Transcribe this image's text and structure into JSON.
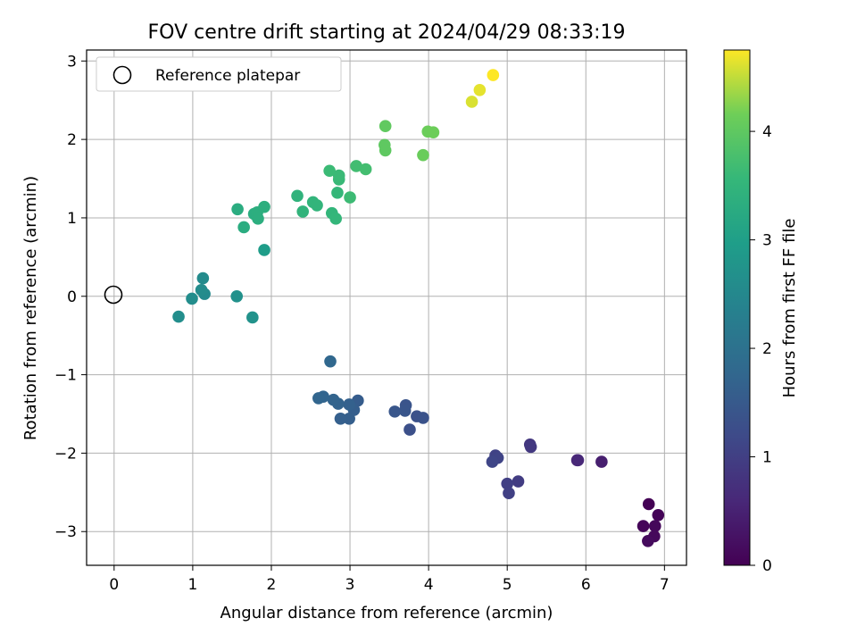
{
  "chart_data": {
    "type": "scatter",
    "title": "FOV centre drift starting at 2024/04/29 08:33:19",
    "xlabel": "Angular distance from reference (arcmin)",
    "ylabel": "Rotation from reference (arcmin)",
    "xlim": [
      -0.35,
      7.28
    ],
    "ylim": [
      -3.43,
      3.14
    ],
    "xticks": [
      "0",
      "1",
      "2",
      "3",
      "4",
      "5",
      "6",
      "7"
    ],
    "yticks": [
      "−3",
      "−2",
      "−1",
      "0",
      "1",
      "2",
      "3"
    ],
    "grid": true,
    "legend": {
      "placement": "top-left",
      "entries": [
        "Reference platepar"
      ]
    },
    "reference_point": {
      "x": 0,
      "y": 0,
      "marker": "open-circle",
      "color": "#000000"
    },
    "colorbar": {
      "label": "Hours from first FF file",
      "colormap": "viridis",
      "range": [
        0,
        4.75
      ],
      "ticks": [
        "0",
        "1",
        "2",
        "3",
        "4"
      ]
    },
    "points": [
      {
        "x": 6.8,
        "y": -2.65,
        "c": 0.02
      },
      {
        "x": 6.92,
        "y": -2.79,
        "c": 0.05
      },
      {
        "x": 6.73,
        "y": -2.93,
        "c": 0.08
      },
      {
        "x": 6.88,
        "y": -2.93,
        "c": 0.1
      },
      {
        "x": 6.87,
        "y": -3.06,
        "c": 0.12
      },
      {
        "x": 6.79,
        "y": -3.12,
        "c": 0.15
      },
      {
        "x": 6.2,
        "y": -2.11,
        "c": 0.45
      },
      {
        "x": 5.89,
        "y": -2.09,
        "c": 0.55
      },
      {
        "x": 5.9,
        "y": -2.09,
        "c": 0.6
      },
      {
        "x": 5.29,
        "y": -1.89,
        "c": 0.85
      },
      {
        "x": 5.3,
        "y": -1.92,
        "c": 0.88
      },
      {
        "x": 5.14,
        "y": -2.36,
        "c": 0.95
      },
      {
        "x": 5.0,
        "y": -2.39,
        "c": 1.0
      },
      {
        "x": 5.02,
        "y": -2.51,
        "c": 1.02
      },
      {
        "x": 4.85,
        "y": -2.03,
        "c": 1.05
      },
      {
        "x": 4.88,
        "y": -2.06,
        "c": 1.08
      },
      {
        "x": 4.81,
        "y": -2.11,
        "c": 1.12
      },
      {
        "x": 3.76,
        "y": -1.7,
        "c": 1.3
      },
      {
        "x": 3.85,
        "y": -1.53,
        "c": 1.33
      },
      {
        "x": 3.93,
        "y": -1.55,
        "c": 1.35
      },
      {
        "x": 3.71,
        "y": -1.39,
        "c": 1.38
      },
      {
        "x": 3.7,
        "y": -1.46,
        "c": 1.4
      },
      {
        "x": 3.57,
        "y": -1.47,
        "c": 1.42
      },
      {
        "x": 3.1,
        "y": -1.33,
        "c": 1.55
      },
      {
        "x": 3.05,
        "y": -1.45,
        "c": 1.58
      },
      {
        "x": 2.99,
        "y": -1.56,
        "c": 1.6
      },
      {
        "x": 2.88,
        "y": -1.56,
        "c": 1.62
      },
      {
        "x": 2.99,
        "y": -1.38,
        "c": 1.65
      },
      {
        "x": 2.85,
        "y": -1.37,
        "c": 1.68
      },
      {
        "x": 2.79,
        "y": -1.32,
        "c": 1.7
      },
      {
        "x": 2.66,
        "y": -1.28,
        "c": 1.73
      },
      {
        "x": 2.6,
        "y": -1.3,
        "c": 1.75
      },
      {
        "x": 2.75,
        "y": -0.83,
        "c": 1.78
      },
      {
        "x": 1.15,
        "y": 0.03,
        "c": 2.55
      },
      {
        "x": 1.13,
        "y": 0.23,
        "c": 2.57
      },
      {
        "x": 1.11,
        "y": 0.08,
        "c": 2.58
      },
      {
        "x": 0.99,
        "y": -0.03,
        "c": 2.6
      },
      {
        "x": 0.82,
        "y": -0.26,
        "c": 2.62
      },
      {
        "x": 1.56,
        "y": 0.0,
        "c": 2.7
      },
      {
        "x": 1.76,
        "y": -0.27,
        "c": 2.72
      },
      {
        "x": 1.91,
        "y": 0.59,
        "c": 2.95
      },
      {
        "x": 1.57,
        "y": 1.11,
        "c": 3.3
      },
      {
        "x": 1.65,
        "y": 0.88,
        "c": 3.3
      },
      {
        "x": 1.78,
        "y": 1.05,
        "c": 3.32
      },
      {
        "x": 1.82,
        "y": 1.07,
        "c": 3.34
      },
      {
        "x": 1.83,
        "y": 0.99,
        "c": 3.34
      },
      {
        "x": 1.91,
        "y": 1.14,
        "c": 3.36
      },
      {
        "x": 2.33,
        "y": 1.28,
        "c": 3.45
      },
      {
        "x": 2.4,
        "y": 1.08,
        "c": 3.47
      },
      {
        "x": 2.53,
        "y": 1.2,
        "c": 3.5
      },
      {
        "x": 2.58,
        "y": 1.16,
        "c": 3.5
      },
      {
        "x": 2.77,
        "y": 1.06,
        "c": 3.52
      },
      {
        "x": 2.82,
        "y": 0.99,
        "c": 3.53
      },
      {
        "x": 2.84,
        "y": 1.32,
        "c": 3.55
      },
      {
        "x": 2.86,
        "y": 1.49,
        "c": 3.6
      },
      {
        "x": 2.86,
        "y": 1.54,
        "c": 3.62
      },
      {
        "x": 2.74,
        "y": 1.6,
        "c": 3.63
      },
      {
        "x": 3.0,
        "y": 1.26,
        "c": 3.65
      },
      {
        "x": 3.08,
        "y": 1.66,
        "c": 3.7
      },
      {
        "x": 3.2,
        "y": 1.62,
        "c": 3.72
      },
      {
        "x": 3.44,
        "y": 1.93,
        "c": 4.0
      },
      {
        "x": 3.45,
        "y": 1.86,
        "c": 4.0
      },
      {
        "x": 3.45,
        "y": 2.17,
        "c": 4.02
      },
      {
        "x": 3.93,
        "y": 1.8,
        "c": 4.1
      },
      {
        "x": 3.99,
        "y": 2.1,
        "c": 4.12
      },
      {
        "x": 4.06,
        "y": 2.09,
        "c": 4.14
      },
      {
        "x": 4.55,
        "y": 2.48,
        "c": 4.6
      },
      {
        "x": 4.65,
        "y": 2.63,
        "c": 4.65
      },
      {
        "x": 4.82,
        "y": 2.82,
        "c": 4.75
      }
    ]
  }
}
